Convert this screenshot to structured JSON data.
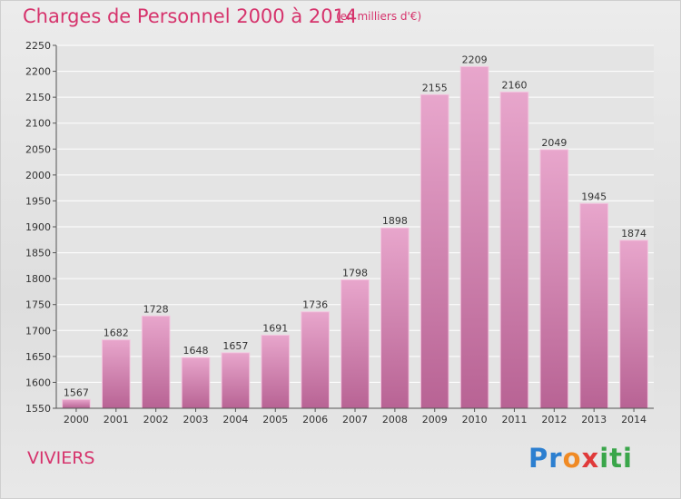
{
  "title": "Charges de Personnel 2000 à 2014",
  "subtitle": "(en milliers d'€)",
  "commune": "VIVIERS",
  "logo": {
    "p1": "Pr",
    "p2": "o",
    "p3": "x",
    "p4": "iti"
  },
  "colors": {
    "bar_light": "#e8a6cc",
    "bar_dark": "#b86394",
    "title": "#d6336c"
  },
  "chart_data": {
    "type": "bar",
    "title": "Charges de Personnel 2000 à 2014",
    "subtitle": "(en milliers d'€)",
    "categories": [
      "2000",
      "2001",
      "2002",
      "2003",
      "2004",
      "2005",
      "2006",
      "2007",
      "2008",
      "2009",
      "2010",
      "2011",
      "2012",
      "2013",
      "2014"
    ],
    "values": [
      1567,
      1682,
      1728,
      1648,
      1657,
      1691,
      1736,
      1798,
      1898,
      2155,
      2209,
      2160,
      2049,
      1945,
      1874
    ],
    "ylim": [
      1550,
      2250
    ],
    "yticks": [
      1550,
      1600,
      1650,
      1700,
      1750,
      1800,
      1850,
      1900,
      1950,
      2000,
      2050,
      2100,
      2150,
      2200,
      2250
    ],
    "grid": true
  }
}
